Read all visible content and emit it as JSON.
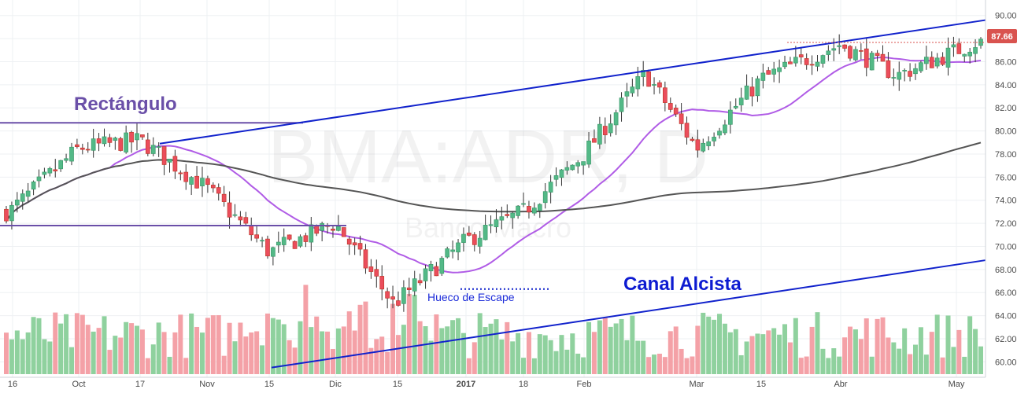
{
  "watermark": {
    "symbol": "BMA:ADR, D",
    "company": "Banco Macro"
  },
  "last_price": {
    "label": "87.66",
    "value": 87.66,
    "color": "#d9534f"
  },
  "colors": {
    "up": "#53b987",
    "down": "#eb4d5c",
    "ma_short": "#b05ce6",
    "ma_long": "#555555",
    "trend": "#1122cc",
    "rect": "#6a4fa8",
    "vol_up": "#8fd19e",
    "vol_down": "#f4a1a7"
  },
  "annotations": {
    "rectangle": "Rectángulo",
    "channel": "Canal Alcista",
    "gap": "Hueco de Escape"
  },
  "chart_data": {
    "type": "candlestick",
    "title": "BMA:ADR, D",
    "ylim": [
      59.0,
      91.0
    ],
    "y_ticks": [
      "60.00",
      "62.00",
      "64.00",
      "66.00",
      "68.00",
      "70.00",
      "72.00",
      "74.00",
      "76.00",
      "78.00",
      "80.00",
      "82.00",
      "84.00",
      "86.00",
      "88.00",
      "90.00"
    ],
    "x_ticks": [
      "16",
      "Oct",
      "17",
      "Nov",
      "15",
      "Dic",
      "15",
      "2017",
      "18",
      "Feb",
      "Mar",
      "15",
      "Abr",
      "May"
    ],
    "lines": [
      {
        "name": "Rectángulo top",
        "y": 80.7
      },
      {
        "name": "Rectángulo bottom",
        "y": 71.8
      },
      {
        "name": "Canal Alcista upper",
        "from": [
          "Oct 21",
          78.9
        ],
        "to": [
          "May 5",
          89.6
        ]
      },
      {
        "name": "Canal Alcista lower",
        "from": [
          "Nov 16",
          59.5
        ],
        "to": [
          "May 5",
          68.8
        ]
      },
      {
        "name": "Hueco de Escape",
        "y": 66.3
      }
    ],
    "ohlc_keypoints": [
      {
        "x": "Sep 16",
        "close": 73.0
      },
      {
        "x": "Oct",
        "close": 78.5
      },
      {
        "x": "Oct 17",
        "close": 79.2
      },
      {
        "x": "Nov",
        "close": 75.0
      },
      {
        "x": "Nov 15",
        "close": 69.5
      },
      {
        "x": "Dic",
        "close": 72.0
      },
      {
        "x": "Dic 15",
        "close": 65.0
      },
      {
        "x": "2017",
        "close": 70.5
      },
      {
        "x": "Jan 18",
        "close": 73.0
      },
      {
        "x": "Feb",
        "close": 78.0
      },
      {
        "x": "Feb 15",
        "close": 85.0
      },
      {
        "x": "Mar",
        "close": 78.5
      },
      {
        "x": "Mar 15",
        "close": 84.5
      },
      {
        "x": "Abr",
        "close": 87.5
      },
      {
        "x": "Abr 15",
        "close": 84.8
      },
      {
        "x": "May",
        "close": 87.66
      }
    ]
  }
}
